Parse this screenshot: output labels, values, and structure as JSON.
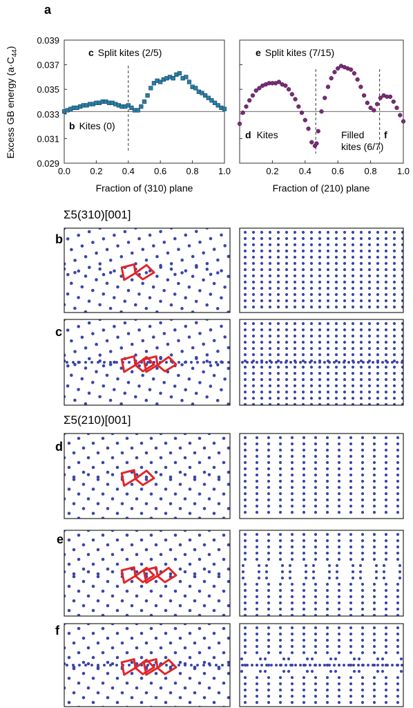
{
  "panel_a_label": "a",
  "y_axis_label": "Excess GB energy (a·C",
  "y_axis_sub": "44",
  "y_axis_close": ")",
  "section_310": "Σ5(310)[001]",
  "section_210": "Σ5(210)[001]",
  "row_labels": [
    "b",
    "c",
    "d",
    "e",
    "f"
  ],
  "colors": {
    "series_310": "#2a7fa8",
    "series_210": "#7a2a78",
    "atoms": "#3a45a8",
    "kites": "#e0262a"
  },
  "chart_data": [
    {
      "type": "scatter",
      "xlabel": "Fraction of (310) plane",
      "ylabel": "Excess GB energy (a·C44)",
      "xlim": [
        0,
        1
      ],
      "ylim": [
        0.029,
        0.039
      ],
      "x_ticks": [
        "0.0",
        "0.2",
        "0.4",
        "0.6",
        "0.8",
        "1.0"
      ],
      "y_ticks": [
        "0.029",
        "0.031",
        "0.033",
        "0.035",
        "0.037",
        "0.039"
      ],
      "baseline": 0.0332,
      "vlines": [
        0.4
      ],
      "annotations": [
        {
          "bold": "c",
          "text": "Split kites (2/5)"
        },
        {
          "bold": "b",
          "text": "Kites (0)"
        }
      ],
      "marker": "square",
      "x": [
        0.0,
        0.02,
        0.04,
        0.06,
        0.08,
        0.1,
        0.12,
        0.14,
        0.16,
        0.18,
        0.2,
        0.22,
        0.24,
        0.26,
        0.28,
        0.3,
        0.32,
        0.34,
        0.36,
        0.38,
        0.4,
        0.42,
        0.44,
        0.46,
        0.48,
        0.5,
        0.52,
        0.54,
        0.56,
        0.58,
        0.6,
        0.62,
        0.64,
        0.66,
        0.68,
        0.7,
        0.72,
        0.74,
        0.76,
        0.78,
        0.8,
        0.82,
        0.84,
        0.86,
        0.88,
        0.9,
        0.92,
        0.94,
        0.96,
        0.98,
        1.0
      ],
      "y": [
        0.0332,
        0.0333,
        0.0334,
        0.0335,
        0.0335,
        0.0336,
        0.0337,
        0.0337,
        0.0338,
        0.0338,
        0.0339,
        0.0339,
        0.034,
        0.034,
        0.0339,
        0.0339,
        0.0338,
        0.0337,
        0.0336,
        0.0336,
        0.0337,
        0.0335,
        0.0333,
        0.0333,
        0.0336,
        0.034,
        0.0345,
        0.0351,
        0.0355,
        0.0357,
        0.0356,
        0.0358,
        0.0359,
        0.036,
        0.0359,
        0.0362,
        0.0363,
        0.0359,
        0.036,
        0.0356,
        0.0352,
        0.0351,
        0.0348,
        0.0347,
        0.0345,
        0.0343,
        0.0341,
        0.0339,
        0.0337,
        0.0335,
        0.0334
      ]
    },
    {
      "type": "scatter",
      "xlabel": "Fraction of (210) plane",
      "xlim": [
        0,
        1
      ],
      "ylim": [
        0.029,
        0.039
      ],
      "x_ticks": [
        "0.2",
        "0.4",
        "0.6",
        "0.8",
        "1.0"
      ],
      "baseline": 0.0332,
      "vlines": [
        0.465,
        0.855
      ],
      "annotations": [
        {
          "bold": "e",
          "text": "Split kites (7/15)"
        },
        {
          "bold": "d",
          "text": "Kites"
        },
        {
          "bold": "f",
          "text": "Filled kites (6/7)"
        }
      ],
      "marker": "circle",
      "x": [
        0.0,
        0.02,
        0.04,
        0.06,
        0.08,
        0.1,
        0.12,
        0.14,
        0.16,
        0.18,
        0.2,
        0.22,
        0.24,
        0.26,
        0.28,
        0.3,
        0.32,
        0.34,
        0.36,
        0.38,
        0.4,
        0.42,
        0.44,
        0.46,
        0.47,
        0.48,
        0.5,
        0.52,
        0.54,
        0.56,
        0.58,
        0.6,
        0.62,
        0.64,
        0.66,
        0.68,
        0.7,
        0.72,
        0.74,
        0.76,
        0.78,
        0.8,
        0.82,
        0.84,
        0.86,
        0.88,
        0.9,
        0.92,
        0.94,
        0.96,
        0.98,
        1.0
      ],
      "y": [
        0.0322,
        0.0331,
        0.0336,
        0.0341,
        0.0345,
        0.0349,
        0.0351,
        0.0353,
        0.0354,
        0.0355,
        0.0355,
        0.0355,
        0.0356,
        0.0354,
        0.0353,
        0.035,
        0.0346,
        0.0342,
        0.0336,
        0.0331,
        0.0325,
        0.0318,
        0.0307,
        0.0304,
        0.0306,
        0.0316,
        0.0332,
        0.0343,
        0.0352,
        0.0359,
        0.0364,
        0.0367,
        0.0369,
        0.0368,
        0.0367,
        0.0366,
        0.0363,
        0.0358,
        0.0352,
        0.0345,
        0.0339,
        0.0335,
        0.0333,
        0.0338,
        0.0343,
        0.0345,
        0.0344,
        0.0344,
        0.034,
        0.0335,
        0.0329,
        0.0324
      ]
    }
  ]
}
